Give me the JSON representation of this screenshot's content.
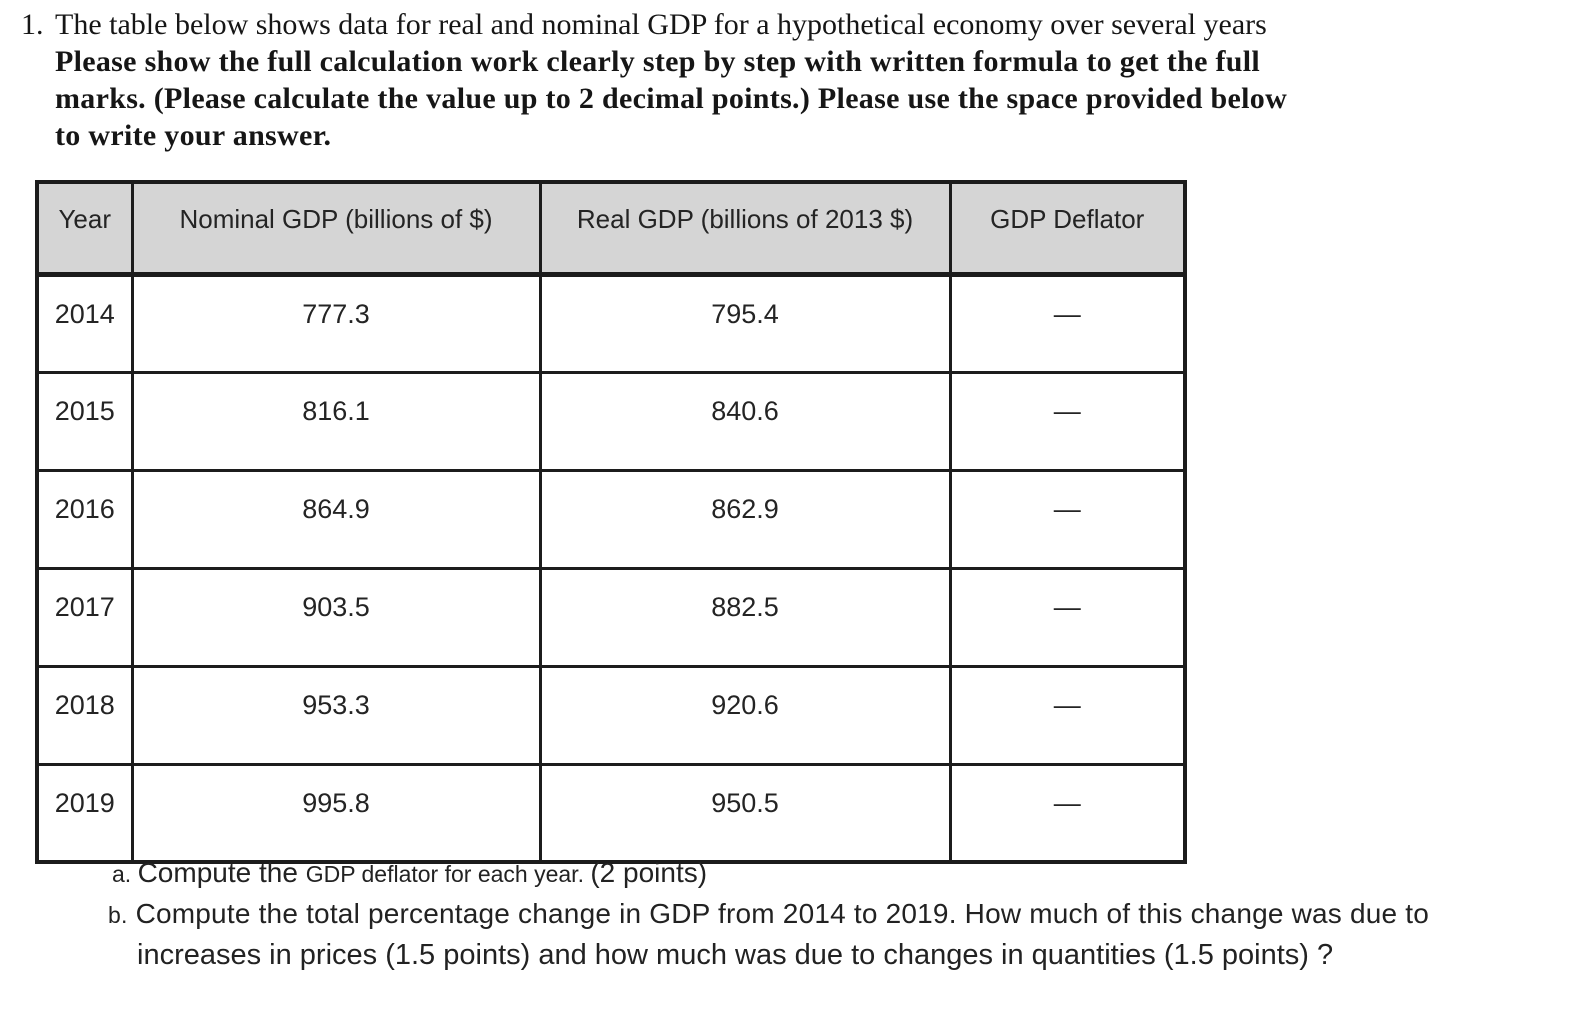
{
  "question": {
    "number": "1.",
    "line1": "The table below shows data for real and nominal GDP for a hypothetical economy over several years",
    "bold_line1": "Please show the full calculation work clearly step by step with written formula to get the full",
    "bold_line2": "marks. (Please calculate the value up to 2 decimal points.) Please use the space provided below",
    "bold_line3": "to write your answer."
  },
  "table": {
    "headers": [
      "Year",
      "Nominal GDP (billions of $)",
      "Real GDP (billions of 2013 $)",
      "GDP Deflator"
    ],
    "rows": [
      {
        "year": "2014",
        "nominal_gdp": "777.3",
        "real_gdp": "795.4",
        "gdp_deflator": "—"
      },
      {
        "year": "2015",
        "nominal_gdp": "816.1",
        "real_gdp": "840.6",
        "gdp_deflator": "—"
      },
      {
        "year": "2016",
        "nominal_gdp": "864.9",
        "real_gdp": "862.9",
        "gdp_deflator": "—"
      },
      {
        "year": "2017",
        "nominal_gdp": "903.5",
        "real_gdp": "882.5",
        "gdp_deflator": "—"
      },
      {
        "year": "2018",
        "nominal_gdp": "953.3",
        "real_gdp": "920.6",
        "gdp_deflator": "—"
      },
      {
        "year": "2019",
        "nominal_gdp": "995.8",
        "real_gdp": "950.5",
        "gdp_deflator": "—"
      }
    ]
  },
  "subquestions": {
    "a_label": "a.",
    "a_part1": "Compute the ",
    "a_part2": "GDP deflator for each year. ",
    "a_part3": "(2 points)",
    "b_label": "b.",
    "b_line1": " Compute the total percentage change in GDP from 2014 to 2019. How much of this change was due to",
    "b_line2": "increases in prices (1.5 points) and how much was due to changes in quantities (1.5 points) ?"
  },
  "colors": {
    "page_background": "#ffffff",
    "table_header_background": "#d5d5d5",
    "table_border": "#1c1c1c",
    "text": "#1c1c1c"
  }
}
